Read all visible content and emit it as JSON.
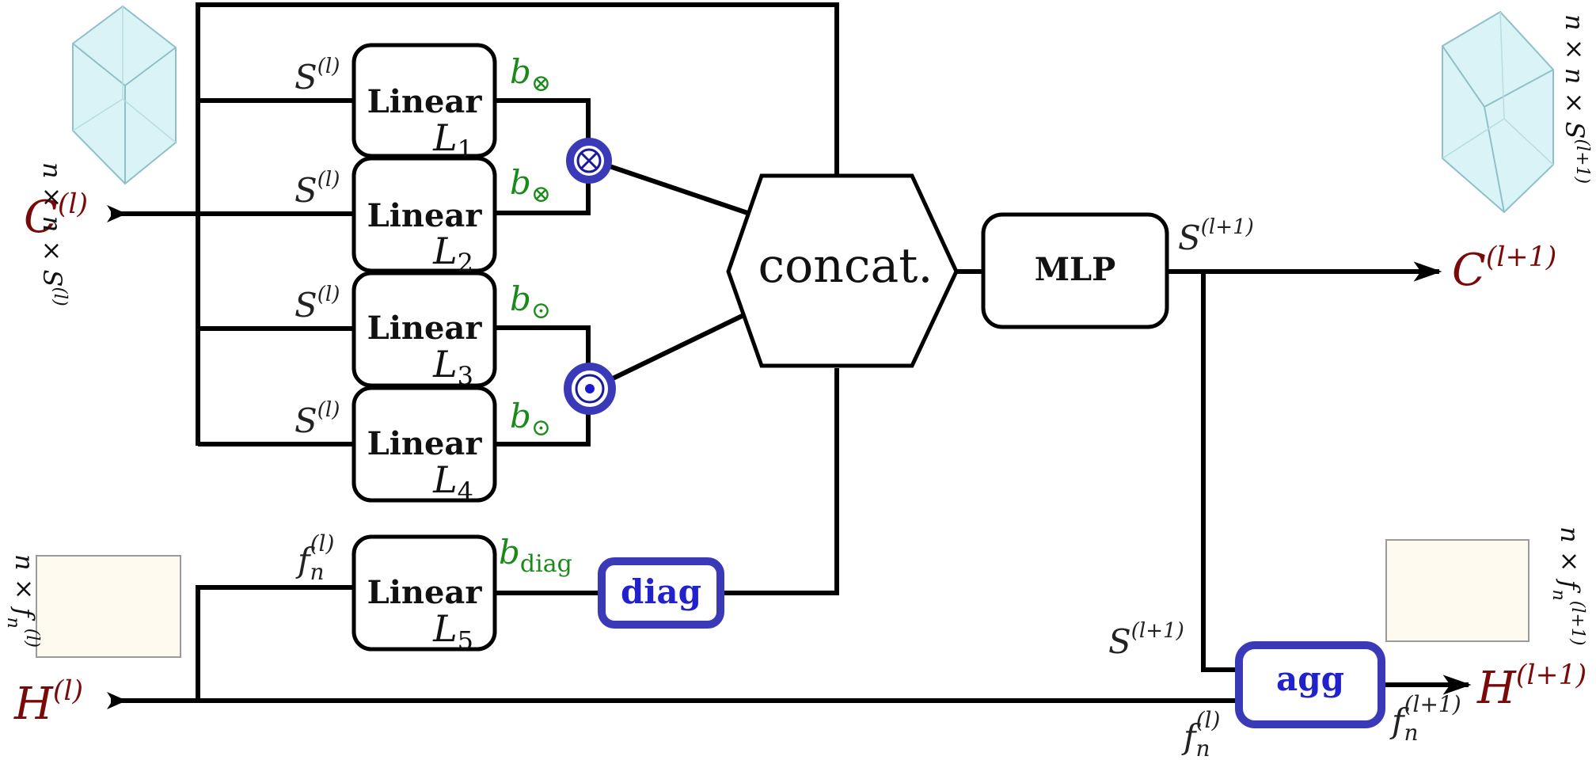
{
  "inputs": {
    "c_in": {
      "base": "C",
      "sup": "(l)"
    },
    "h_in": {
      "base": "H",
      "sup": "(l)"
    }
  },
  "outputs": {
    "c_out": {
      "base": "C",
      "sup": "(l+1)"
    },
    "h_out": {
      "base": "H",
      "sup": "(l+1)"
    }
  },
  "tensor_dims": {
    "c_in": {
      "a": "n × n × S",
      "sup": "(l)"
    },
    "c_out": {
      "a": "n × n × S",
      "sup": "(l+1)"
    },
    "h_in": {
      "a": "n × f",
      "sub": "n",
      "sup": "(l)"
    },
    "h_out": {
      "a": "n × f",
      "sub": "n",
      "sup": "(l+1)"
    }
  },
  "linear_blocks": [
    {
      "title": "Linear",
      "sub_base": "L",
      "sub_idx": "1",
      "in_label": "S",
      "in_sup": "(l)",
      "out_label": "b",
      "out_sym": "⊗"
    },
    {
      "title": "Linear",
      "sub_base": "L",
      "sub_idx": "2",
      "in_label": "S",
      "in_sup": "(l)",
      "out_label": "b",
      "out_sym": "⊗"
    },
    {
      "title": "Linear",
      "sub_base": "L",
      "sub_idx": "3",
      "in_label": "S",
      "in_sup": "(l)",
      "out_label": "b",
      "out_sym": "⊙"
    },
    {
      "title": "Linear",
      "sub_base": "L",
      "sub_idx": "4",
      "in_label": "S",
      "in_sup": "(l)",
      "out_label": "b",
      "out_sym": "⊙"
    },
    {
      "title": "Linear",
      "sub_base": "L",
      "sub_idx": "5",
      "in_label": "f",
      "in_sub": "n",
      "in_sup": "(l)",
      "out_label": "b",
      "out_sub": "diag"
    }
  ],
  "ops": {
    "concat": "concat.",
    "mlp": "MLP",
    "diag": "diag",
    "agg": "agg"
  },
  "wire_labels": {
    "mlp_out": {
      "base": "S",
      "sup": "(l+1)"
    },
    "agg_in_s": {
      "base": "S",
      "sup": "(l+1)"
    },
    "agg_in_f": {
      "base": "f",
      "sub": "n",
      "sup": "(l)"
    },
    "agg_out_f": {
      "base": "f",
      "sub": "n",
      "sup": "(l+1)"
    }
  },
  "colors": {
    "wire": "#000000",
    "op_blue": "#3a3ab8",
    "label_green": "#1a8a1a",
    "label_red": "#7a0a0a",
    "cube_fill": "#d9f3f6",
    "matrix_fill": "#fffaf0"
  }
}
